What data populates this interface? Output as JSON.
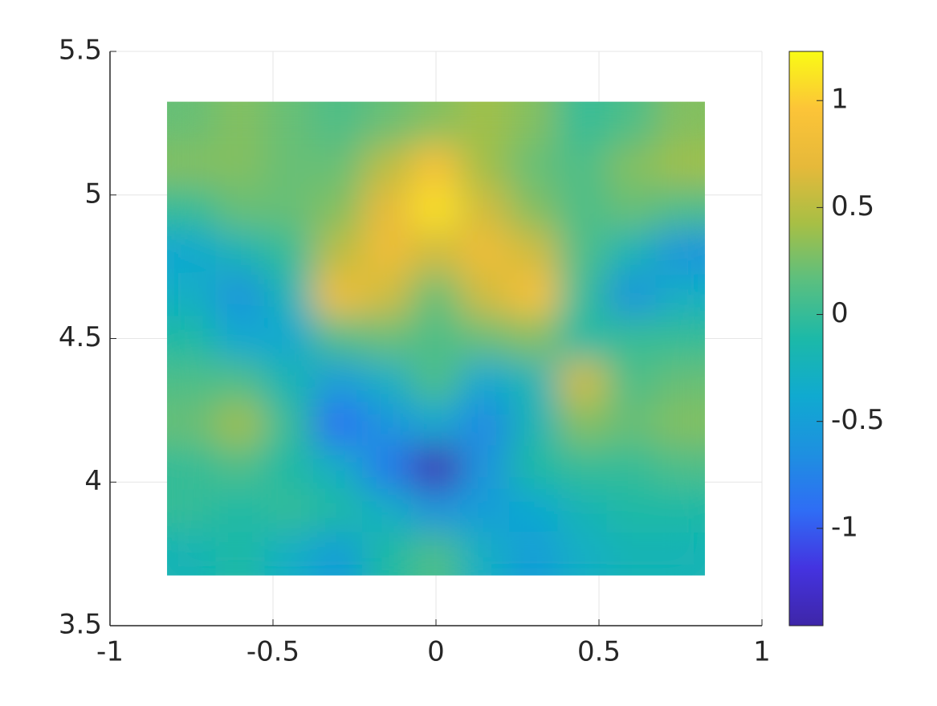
{
  "chart_data": {
    "type": "heatmap",
    "x": [
      -0.75,
      -0.6,
      -0.45,
      -0.3,
      -0.15,
      0,
      0.15,
      0.3,
      0.45,
      0.6,
      0.75
    ],
    "y": [
      5.25,
      5.1,
      4.95,
      4.8,
      4.65,
      4.5,
      4.35,
      4.2,
      4.05,
      3.9,
      3.75
    ],
    "values": [
      [
        0.2,
        0.3,
        0.2,
        0.1,
        0.2,
        0.3,
        0.4,
        0.3,
        0.0,
        0.1,
        0.3
      ],
      [
        0.3,
        0.3,
        0.2,
        0.2,
        0.5,
        0.9,
        0.4,
        0.2,
        0.1,
        0.3,
        0.4
      ],
      [
        0.0,
        0.2,
        0.2,
        0.3,
        0.7,
        1.1,
        0.6,
        0.3,
        0.1,
        0.2,
        0.1
      ],
      [
        -0.4,
        -0.2,
        0.0,
        0.5,
        0.8,
        0.6,
        0.8,
        0.6,
        0.1,
        -0.2,
        -0.6
      ],
      [
        -0.3,
        -0.6,
        -0.2,
        0.8,
        0.6,
        0.2,
        0.6,
        0.9,
        0.0,
        -0.6,
        -0.3
      ],
      [
        -0.1,
        -0.4,
        -0.4,
        0.1,
        0.2,
        0.1,
        0.2,
        0.3,
        -0.1,
        0.0,
        0.0
      ],
      [
        0.1,
        0.1,
        -0.2,
        -0.5,
        -0.3,
        0.1,
        -0.4,
        -0.2,
        0.6,
        0.1,
        0.2
      ],
      [
        0.2,
        0.4,
        0.0,
        -0.9,
        -0.6,
        -0.4,
        -0.7,
        -0.2,
        0.3,
        0.2,
        0.3
      ],
      [
        0.0,
        0.1,
        -0.1,
        -0.3,
        -0.8,
        -1.4,
        -0.6,
        -0.1,
        0.0,
        0.0,
        0.1
      ],
      [
        0.0,
        -0.1,
        0.0,
        -0.1,
        -0.3,
        -0.6,
        -0.5,
        -0.4,
        -0.2,
        -0.1,
        -0.1
      ],
      [
        -0.2,
        -0.1,
        -0.3,
        -0.5,
        -0.1,
        0.1,
        -0.3,
        -0.5,
        -0.3,
        -0.2,
        -0.2
      ]
    ],
    "xlim": [
      -1,
      1
    ],
    "xticks": [
      -1,
      -0.5,
      0,
      0.5,
      1
    ],
    "ylim": [
      3.5,
      5.5
    ],
    "yticks": [
      3.5,
      4,
      4.5,
      5,
      5.5
    ],
    "clim": [
      -1.455,
      1.23
    ],
    "cticks": [
      -1,
      -0.5,
      0,
      0.5,
      1
    ],
    "colormap": [
      "#3e26a8",
      "#4433e0",
      "#2f6df5",
      "#1e90e0",
      "#10aad0",
      "#1cb9a8",
      "#5abf80",
      "#a7bf45",
      "#e6b93a",
      "#fcc438",
      "#f9fb15"
    ],
    "grid": true
  }
}
